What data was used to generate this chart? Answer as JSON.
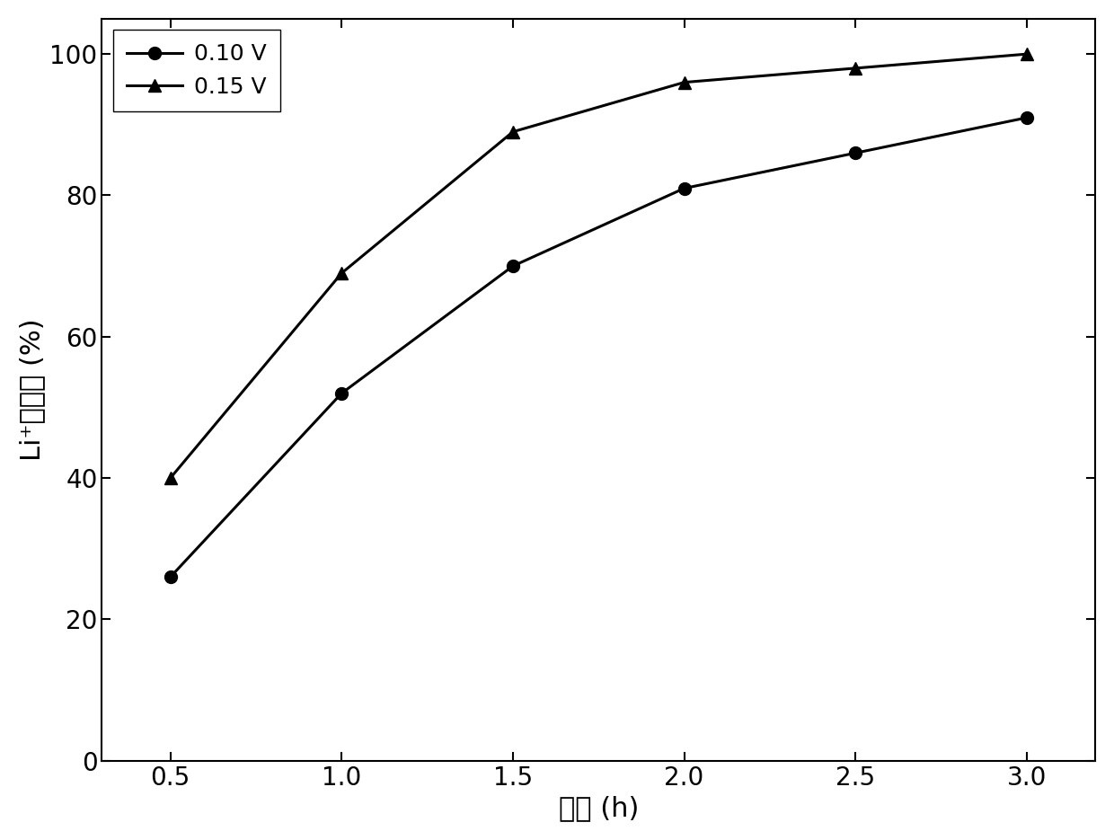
{
  "x": [
    0.5,
    1.0,
    1.5,
    2.0,
    2.5,
    3.0
  ],
  "y_010": [
    26,
    52,
    70,
    81,
    86,
    91
  ],
  "y_015": [
    40,
    69,
    89,
    96,
    98,
    100
  ],
  "label_010": "0.10 V",
  "label_015": "0.15 V",
  "xlabel": "时间 (h)",
  "ylabel": "Li⁺回收率 (%)",
  "xlim": [
    0.3,
    3.2
  ],
  "ylim": [
    0,
    105
  ],
  "xticks": [
    0.5,
    1.0,
    1.5,
    2.0,
    2.5,
    3.0
  ],
  "yticks": [
    0,
    20,
    40,
    60,
    80,
    100
  ],
  "line_color": "#000000",
  "marker_circle": "o",
  "marker_triangle": "^",
  "markersize": 10,
  "linewidth": 2.2,
  "legend_fontsize": 18,
  "axis_fontsize": 22,
  "tick_fontsize": 20
}
